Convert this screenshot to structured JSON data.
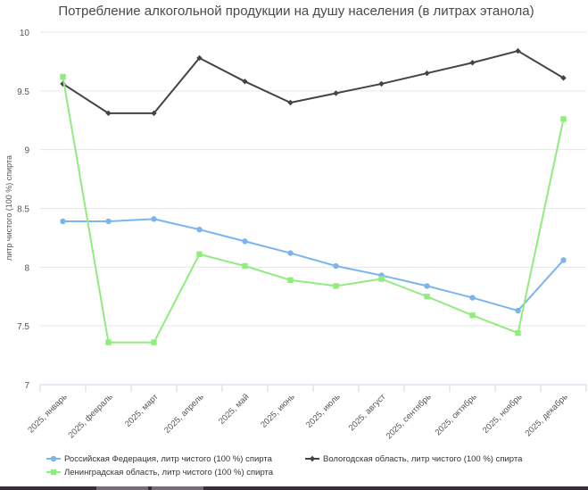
{
  "chart_data": {
    "type": "line",
    "title": "Потребление алкогольной продукции на душу населения (в литрах этанола)",
    "ylabel": "литр чистого (100 %) спирта",
    "xlabel": "",
    "categories": [
      "2025, январь",
      "2025, февраль",
      "2025, март",
      "2025, апрель",
      "2025, май",
      "2025, июнь",
      "2025, июль",
      "2025, август",
      "2025, сентябрь",
      "2025, октябрь",
      "2025, ноябрь",
      "2025, декабрь"
    ],
    "ylim": [
      7,
      10
    ],
    "yticks": [
      "7",
      "7.5",
      "8",
      "8.5",
      "9",
      "9.5",
      "10"
    ],
    "grid": true,
    "legend_position": "bottom",
    "series": [
      {
        "name": "Российская Федерация, литр чистого (100 %) спирта",
        "color": "#7cb5ec",
        "marker": "circle",
        "values": [
          8.39,
          8.39,
          8.41,
          8.32,
          8.22,
          8.12,
          8.01,
          7.93,
          7.84,
          7.74,
          7.63,
          8.06
        ]
      },
      {
        "name": "Вологодская область, литр чистого (100 %) спирта",
        "color": "#434348",
        "marker": "diamond",
        "values": [
          9.56,
          9.31,
          9.31,
          9.78,
          9.58,
          9.4,
          9.48,
          9.56,
          9.65,
          9.74,
          9.84,
          9.61
        ]
      },
      {
        "name": "Ленинградская область, литр чистого (100 %) спирта",
        "color": "#90ed7d",
        "marker": "square",
        "values": [
          9.62,
          7.36,
          7.36,
          8.11,
          8.01,
          7.89,
          7.84,
          7.9,
          7.75,
          7.59,
          7.44,
          9.26
        ]
      }
    ]
  }
}
